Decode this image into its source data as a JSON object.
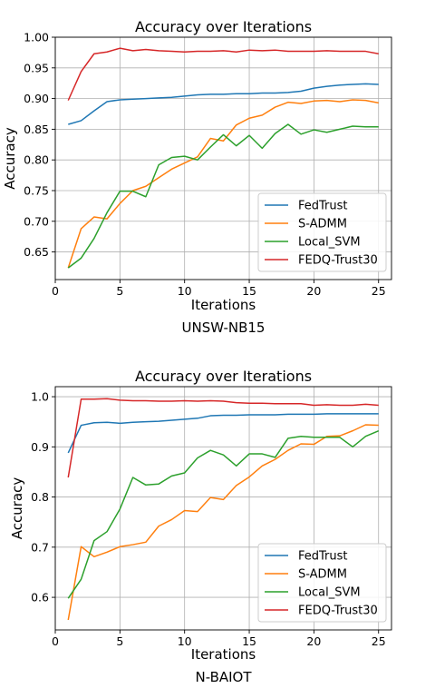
{
  "colors": {
    "FedTrust": "#1f77b4",
    "S-ADMM": "#ff7f0e",
    "Local_SVM": "#2ca02c",
    "FEDQ-Trust30": "#d62728"
  },
  "chart_data": [
    {
      "type": "line",
      "title": "Accuracy over Iterations",
      "xlabel": "Iterations",
      "ylabel": "Accuracy",
      "caption": "UNSW-NB15",
      "xlim": [
        0,
        26
      ],
      "ylim": [
        0.605,
        1.0
      ],
      "xticks": [
        0,
        5,
        10,
        15,
        20,
        25
      ],
      "yticks": [
        0.65,
        0.7,
        0.75,
        0.8,
        0.85,
        0.9,
        0.95,
        1.0
      ],
      "ytick_labels": [
        "0.65",
        "0.70",
        "0.75",
        "0.80",
        "0.85",
        "0.90",
        "0.95",
        "1.00"
      ],
      "grid": true,
      "legend": "lower-right",
      "x": [
        1,
        2,
        3,
        4,
        5,
        6,
        7,
        8,
        9,
        10,
        11,
        12,
        13,
        14,
        15,
        16,
        17,
        18,
        19,
        20,
        21,
        22,
        23,
        24,
        25
      ],
      "series": [
        {
          "name": "FedTrust",
          "values": [
            0.858,
            0.864,
            0.88,
            0.895,
            0.898,
            0.899,
            0.9,
            0.901,
            0.902,
            0.904,
            0.906,
            0.907,
            0.907,
            0.908,
            0.908,
            0.909,
            0.909,
            0.91,
            0.912,
            0.917,
            0.92,
            0.922,
            0.923,
            0.924,
            0.923
          ]
        },
        {
          "name": "S-ADMM",
          "values": [
            0.624,
            0.688,
            0.707,
            0.704,
            0.729,
            0.75,
            0.757,
            0.771,
            0.785,
            0.795,
            0.805,
            0.835,
            0.831,
            0.857,
            0.868,
            0.873,
            0.886,
            0.894,
            0.892,
            0.896,
            0.897,
            0.895,
            0.898,
            0.897,
            0.893
          ]
        },
        {
          "name": "Local_SVM",
          "values": [
            0.624,
            0.64,
            0.672,
            0.714,
            0.749,
            0.749,
            0.74,
            0.792,
            0.804,
            0.806,
            0.8,
            0.821,
            0.841,
            0.823,
            0.84,
            0.819,
            0.843,
            0.858,
            0.842,
            0.849,
            0.845,
            0.85,
            0.855,
            0.854,
            0.854
          ]
        },
        {
          "name": "FEDQ-Trust30",
          "values": [
            0.897,
            0.944,
            0.973,
            0.976,
            0.982,
            0.978,
            0.98,
            0.978,
            0.977,
            0.976,
            0.977,
            0.977,
            0.978,
            0.976,
            0.979,
            0.978,
            0.979,
            0.977,
            0.977,
            0.977,
            0.978,
            0.977,
            0.977,
            0.977,
            0.973
          ]
        }
      ]
    },
    {
      "type": "line",
      "title": "Accuracy over Iterations",
      "xlabel": "Iterations",
      "ylabel": "Accuracy",
      "caption": "N-BAIOT",
      "xlim": [
        0,
        26
      ],
      "ylim": [
        0.535,
        1.02
      ],
      "xticks": [
        0,
        5,
        10,
        15,
        20,
        25
      ],
      "yticks": [
        0.6,
        0.7,
        0.8,
        0.9,
        1.0
      ],
      "ytick_labels": [
        "0.6",
        "0.7",
        "0.8",
        "0.9",
        "1.0"
      ],
      "grid": true,
      "legend": "lower-right",
      "x": [
        1,
        2,
        3,
        4,
        5,
        6,
        7,
        8,
        9,
        10,
        11,
        12,
        13,
        14,
        15,
        16,
        17,
        18,
        19,
        20,
        21,
        22,
        23,
        24,
        25
      ],
      "series": [
        {
          "name": "FedTrust",
          "values": [
            0.888,
            0.943,
            0.948,
            0.949,
            0.947,
            0.949,
            0.95,
            0.951,
            0.953,
            0.955,
            0.957,
            0.962,
            0.963,
            0.963,
            0.964,
            0.964,
            0.964,
            0.965,
            0.965,
            0.965,
            0.966,
            0.966,
            0.966,
            0.966,
            0.966
          ]
        },
        {
          "name": "S-ADMM",
          "values": [
            0.555,
            0.701,
            0.681,
            0.69,
            0.701,
            0.705,
            0.71,
            0.742,
            0.755,
            0.773,
            0.771,
            0.799,
            0.795,
            0.823,
            0.84,
            0.862,
            0.875,
            0.893,
            0.906,
            0.905,
            0.921,
            0.922,
            0.932,
            0.944,
            0.943
          ]
        },
        {
          "name": "Local_SVM",
          "values": [
            0.598,
            0.636,
            0.713,
            0.731,
            0.776,
            0.839,
            0.824,
            0.826,
            0.842,
            0.848,
            0.878,
            0.893,
            0.884,
            0.862,
            0.886,
            0.886,
            0.879,
            0.917,
            0.921,
            0.919,
            0.919,
            0.919,
            0.9,
            0.921,
            0.932
          ]
        },
        {
          "name": "FEDQ-Trust30",
          "values": [
            0.839,
            0.995,
            0.995,
            0.996,
            0.993,
            0.992,
            0.992,
            0.991,
            0.991,
            0.992,
            0.991,
            0.992,
            0.991,
            0.988,
            0.987,
            0.987,
            0.986,
            0.986,
            0.986,
            0.983,
            0.984,
            0.983,
            0.983,
            0.985,
            0.983
          ]
        }
      ]
    }
  ]
}
